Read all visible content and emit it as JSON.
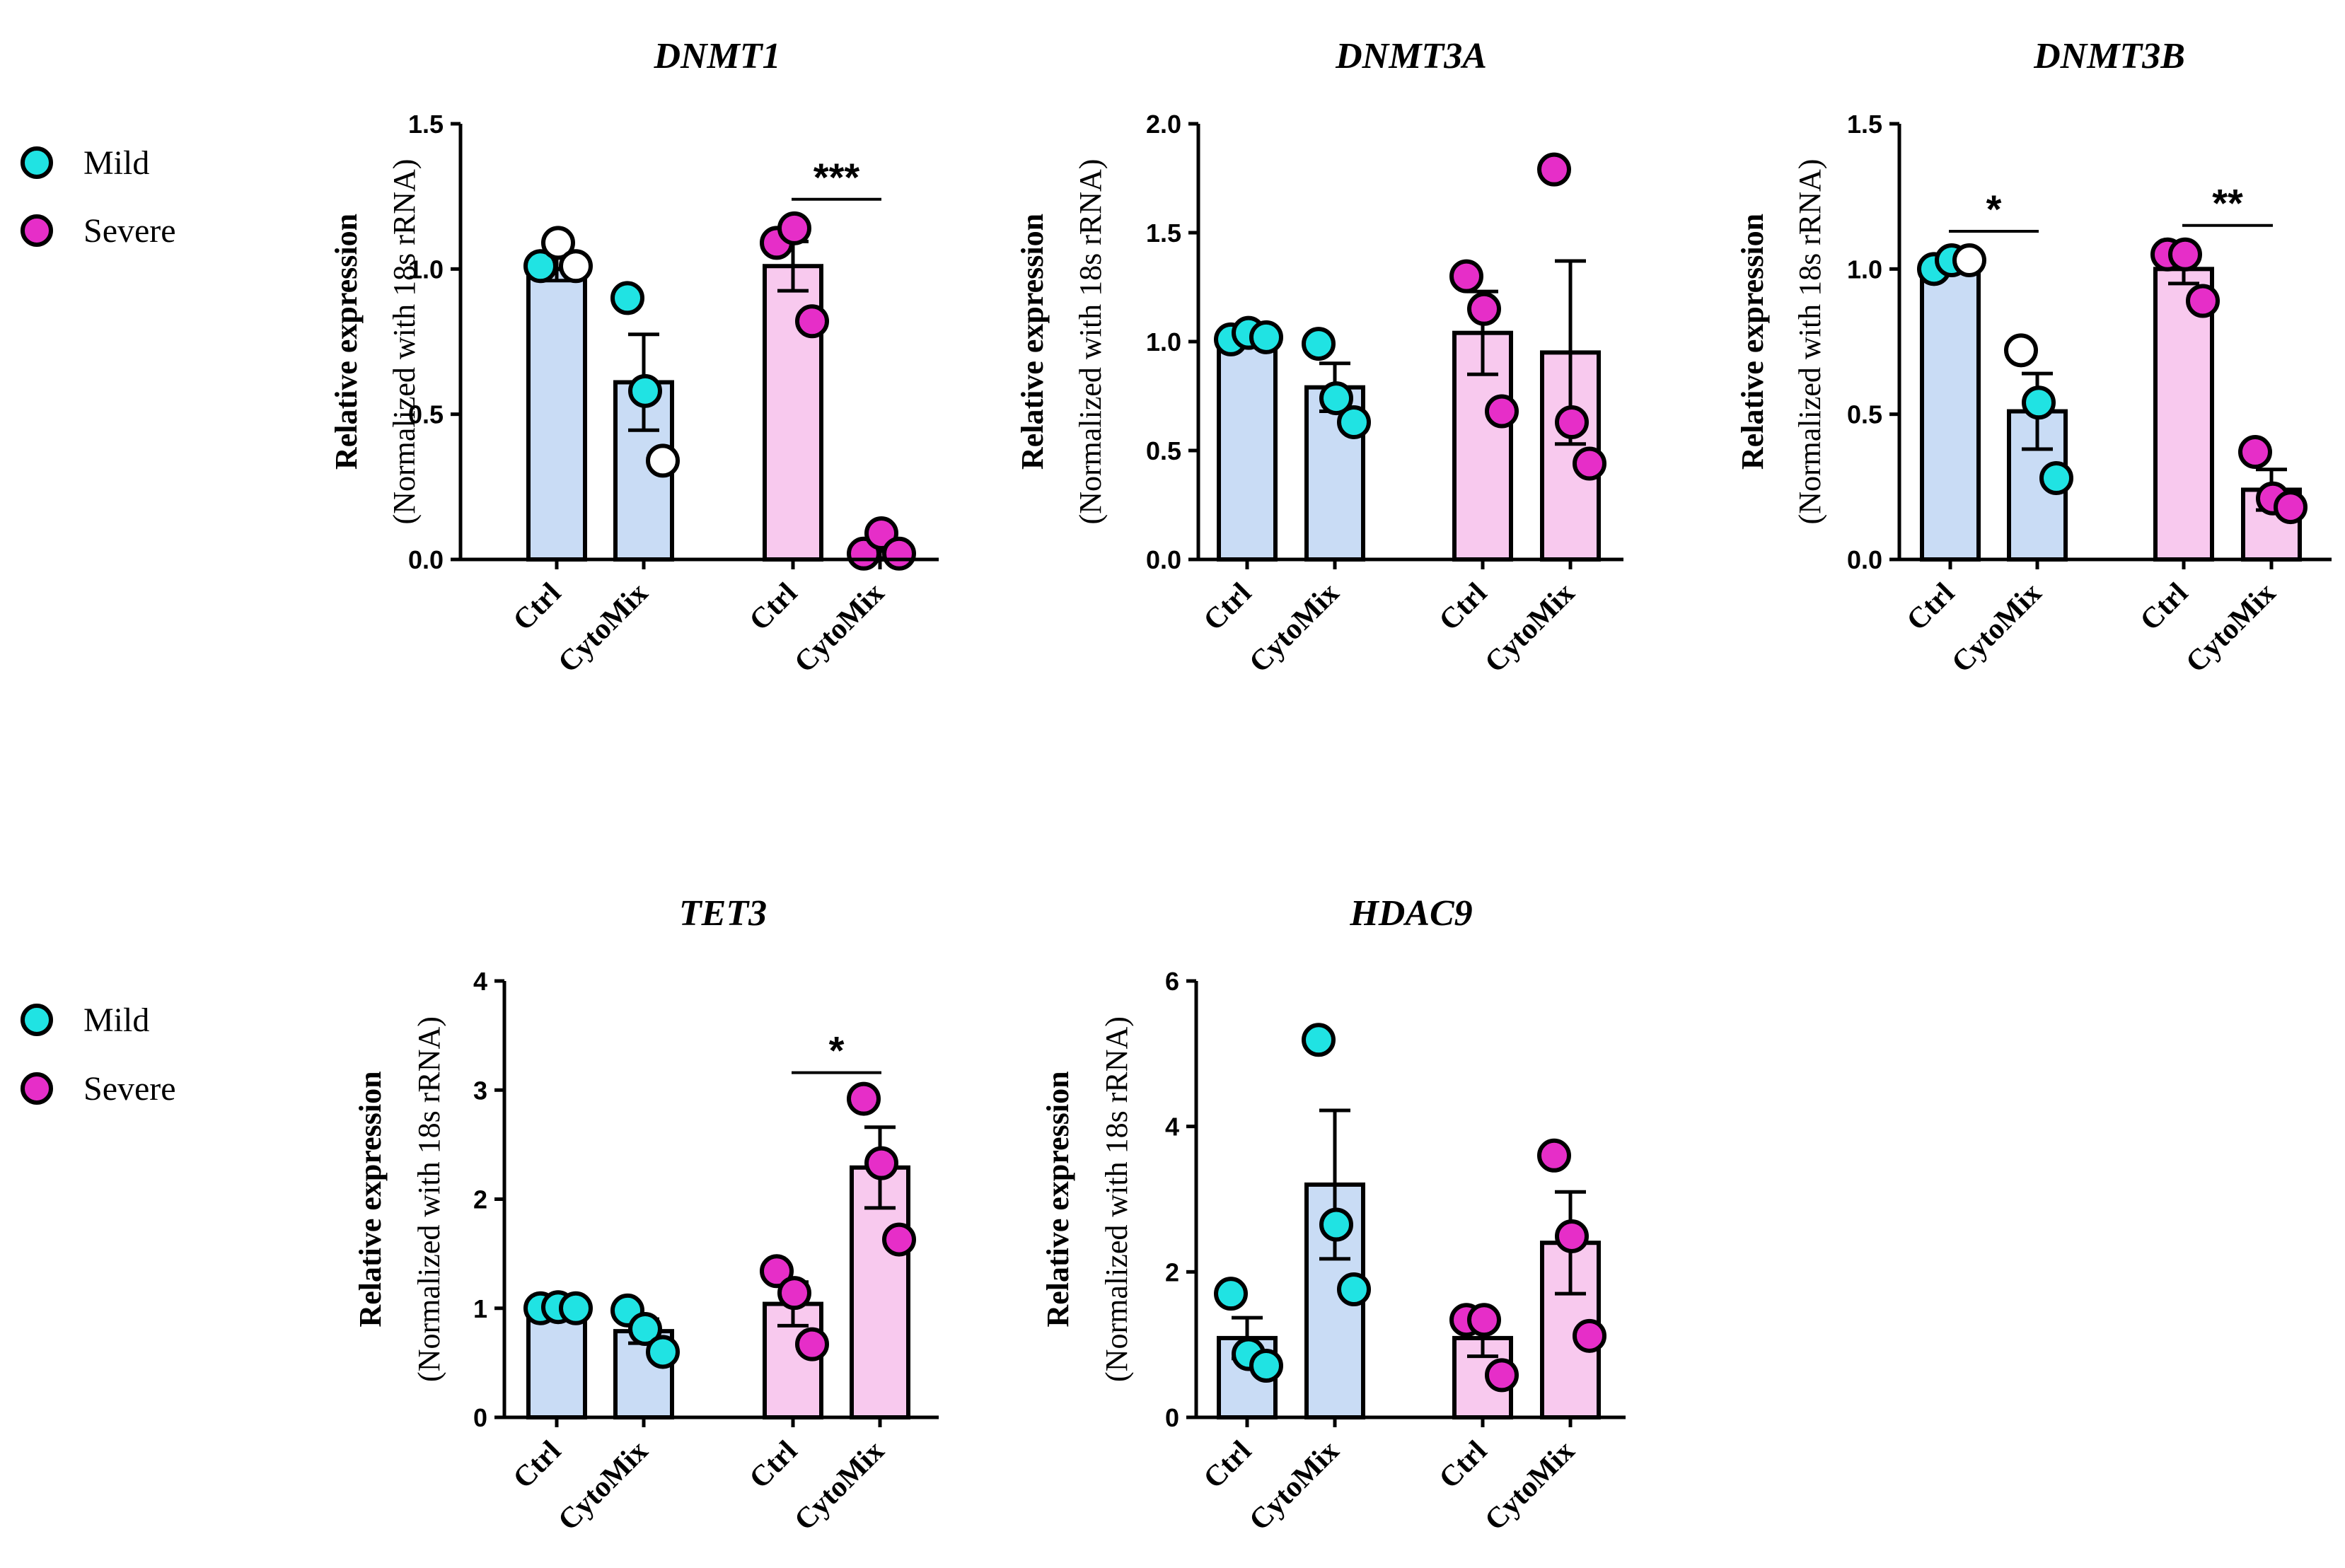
{
  "legend": {
    "items": [
      {
        "label": "Mild",
        "color": "#20e3e3"
      },
      {
        "label": "Severe",
        "color": "#e62ec8"
      }
    ]
  },
  "colors": {
    "mild_bar": "#c9dcf5",
    "severe_bar": "#f8c9ee",
    "mild_point": "#20e3e3",
    "severe_point": "#e62ec8",
    "open_point": "#ffffff"
  },
  "chart_data": [
    {
      "type": "bar",
      "title": "DNMT1",
      "ylabel": "Relative expression",
      "ylabel_sub": "(Normalized with 18s rRNA)",
      "ylim": [
        0,
        1.5
      ],
      "yticks": [
        "0.0",
        "0.5",
        "1.0",
        "1.5"
      ],
      "categories": [
        "Ctrl",
        "CytoMix",
        "Ctrl",
        "CytoMix"
      ],
      "groups": [
        "Mild",
        "Mild",
        "Severe",
        "Severe"
      ],
      "values": [
        1.0,
        0.61,
        1.01,
        0.03
      ],
      "errors": [
        0.04,
        0.165,
        0.085,
        0.025
      ],
      "points": [
        [
          {
            "v": 1.01,
            "open": false
          },
          {
            "v": 1.09,
            "open": true
          },
          {
            "v": 1.01,
            "open": true
          }
        ],
        [
          {
            "v": 0.9,
            "open": false
          },
          {
            "v": 0.58,
            "open": false
          },
          {
            "v": 0.34,
            "open": true
          }
        ],
        [
          {
            "v": 1.09,
            "open": false
          },
          {
            "v": 1.14,
            "open": false
          },
          {
            "v": 0.82,
            "open": false
          }
        ],
        [
          {
            "v": 0.02,
            "open": false
          },
          {
            "v": 0.09,
            "open": false
          },
          {
            "v": 0.02,
            "open": false
          }
        ]
      ],
      "significance": [
        {
          "from": 2,
          "to": 3,
          "label": "***",
          "y": 1.24
        }
      ]
    },
    {
      "type": "bar",
      "title": "DNMT3A",
      "ylabel": "Relative expression",
      "ylabel_sub": "(Normalized with 18s rRNA)",
      "ylim": [
        0,
        2.0
      ],
      "yticks": [
        "0.0",
        "0.5",
        "1.0",
        "1.5",
        "2.0"
      ],
      "categories": [
        "Ctrl",
        "CytoMix",
        "Ctrl",
        "CytoMix"
      ],
      "groups": [
        "Mild",
        "Mild",
        "Severe",
        "Severe"
      ],
      "values": [
        1.02,
        0.79,
        1.04,
        0.95
      ],
      "errors": [
        0.02,
        0.11,
        0.19,
        0.42
      ],
      "points": [
        [
          {
            "v": 1.01,
            "open": false
          },
          {
            "v": 1.04,
            "open": false
          },
          {
            "v": 1.02,
            "open": false
          }
        ],
        [
          {
            "v": 0.99,
            "open": false
          },
          {
            "v": 0.74,
            "open": false
          },
          {
            "v": 0.63,
            "open": false
          }
        ],
        [
          {
            "v": 1.3,
            "open": false
          },
          {
            "v": 1.15,
            "open": false
          },
          {
            "v": 0.68,
            "open": false
          }
        ],
        [
          {
            "v": 1.79,
            "open": false
          },
          {
            "v": 0.63,
            "open": false
          },
          {
            "v": 0.44,
            "open": false
          }
        ]
      ],
      "significance": []
    },
    {
      "type": "bar",
      "title": "DNMT3B",
      "ylabel": "Relative expression",
      "ylabel_sub": "(Normalized with 18s rRNA)",
      "ylim": [
        0,
        1.5
      ],
      "yticks": [
        "0.0",
        "0.5",
        "1.0",
        "1.5"
      ],
      "categories": [
        "Ctrl",
        "CytoMix",
        "Ctrl",
        "CytoMix"
      ],
      "groups": [
        "Mild",
        "Mild",
        "Severe",
        "Severe"
      ],
      "values": [
        1.02,
        0.51,
        1.0,
        0.24
      ],
      "errors": [
        0.02,
        0.13,
        0.05,
        0.07
      ],
      "points": [
        [
          {
            "v": 1.0,
            "open": false
          },
          {
            "v": 1.03,
            "open": false
          },
          {
            "v": 1.03,
            "open": true
          }
        ],
        [
          {
            "v": 0.72,
            "open": true
          },
          {
            "v": 0.54,
            "open": false
          },
          {
            "v": 0.28,
            "open": false
          }
        ],
        [
          {
            "v": 1.05,
            "open": false
          },
          {
            "v": 1.05,
            "open": false
          },
          {
            "v": 0.89,
            "open": false
          }
        ],
        [
          {
            "v": 0.37,
            "open": false
          },
          {
            "v": 0.21,
            "open": false
          },
          {
            "v": 0.18,
            "open": false
          }
        ]
      ],
      "significance": [
        {
          "from": 0,
          "to": 1,
          "label": "*",
          "y": 1.13
        },
        {
          "from": 2,
          "to": 3,
          "label": "**",
          "y": 1.15
        }
      ]
    },
    {
      "type": "bar",
      "title": "TET3",
      "ylabel": "Relative expression",
      "ylabel_sub": "(Normalized with 18s rRNA)",
      "ylim": [
        0,
        4
      ],
      "yticks": [
        "0",
        "1",
        "2",
        "3",
        "4"
      ],
      "categories": [
        "Ctrl",
        "CytoMix",
        "Ctrl",
        "CytoMix"
      ],
      "groups": [
        "Mild",
        "Mild",
        "Severe",
        "Severe"
      ],
      "values": [
        1.0,
        0.79,
        1.04,
        2.29
      ],
      "errors": [
        0.02,
        0.11,
        0.2,
        0.37
      ],
      "points": [
        [
          {
            "v": 1.0,
            "open": false
          },
          {
            "v": 1.01,
            "open": false
          },
          {
            "v": 1.0,
            "open": false
          }
        ],
        [
          {
            "v": 0.98,
            "open": false
          },
          {
            "v": 0.81,
            "open": false
          },
          {
            "v": 0.6,
            "open": false
          }
        ],
        [
          {
            "v": 1.34,
            "open": false
          },
          {
            "v": 1.14,
            "open": false
          },
          {
            "v": 0.67,
            "open": false
          }
        ],
        [
          {
            "v": 2.92,
            "open": false
          },
          {
            "v": 2.33,
            "open": false
          },
          {
            "v": 1.63,
            "open": false
          }
        ]
      ],
      "significance": [
        {
          "from": 2,
          "to": 3,
          "label": "*",
          "y": 3.16
        }
      ]
    },
    {
      "type": "bar",
      "title": "HDAC9",
      "ylabel": "Relative expression",
      "ylabel_sub": "(Normalized with 18s rRNA)",
      "ylim": [
        0,
        6
      ],
      "yticks": [
        "0",
        "2",
        "4",
        "6"
      ],
      "categories": [
        "Ctrl",
        "CytoMix",
        "Ctrl",
        "CytoMix"
      ],
      "groups": [
        "Mild",
        "Mild",
        "Severe",
        "Severe"
      ],
      "values": [
        1.09,
        3.2,
        1.09,
        2.4
      ],
      "errors": [
        0.28,
        1.02,
        0.25,
        0.7
      ],
      "points": [
        [
          {
            "v": 1.7,
            "open": false
          },
          {
            "v": 0.87,
            "open": false
          },
          {
            "v": 0.71,
            "open": false
          }
        ],
        [
          {
            "v": 5.19,
            "open": false
          },
          {
            "v": 2.65,
            "open": false
          },
          {
            "v": 1.76,
            "open": false
          }
        ],
        [
          {
            "v": 1.34,
            "open": false
          },
          {
            "v": 1.34,
            "open": false
          },
          {
            "v": 0.58,
            "open": false
          }
        ],
        [
          {
            "v": 3.6,
            "open": false
          },
          {
            "v": 2.49,
            "open": false
          },
          {
            "v": 1.12,
            "open": false
          }
        ]
      ],
      "significance": []
    }
  ]
}
